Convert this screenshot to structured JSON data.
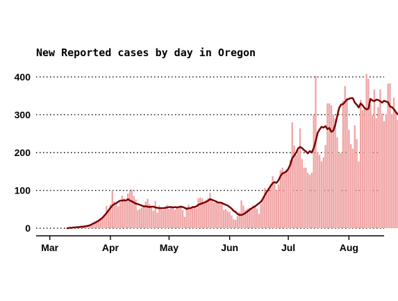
{
  "chart_data": {
    "type": "bar",
    "title": "New Reported cases by day in Oregon",
    "xlabel": "",
    "ylabel": "",
    "x_start": "2020-03-01",
    "x_range": [
      "2020-02-23",
      "2020-08-19"
    ],
    "ylim": [
      -20,
      420
    ],
    "yticks": [
      0,
      100,
      200,
      300,
      400
    ],
    "xticks": [
      {
        "date": "2020-03-01",
        "label": "Mar"
      },
      {
        "date": "2020-04-01",
        "label": "Apr"
      },
      {
        "date": "2020-05-01",
        "label": "May"
      },
      {
        "date": "2020-06-01",
        "label": "Jun"
      },
      {
        "date": "2020-07-01",
        "label": "Jul"
      },
      {
        "date": "2020-08-01",
        "label": "Aug"
      }
    ],
    "grid": {
      "y": true,
      "x": false,
      "style": "dotted"
    },
    "bar_color": "#f0a5a5",
    "line_color": "#7a0000",
    "series": [
      {
        "type": "bar",
        "values": [
          0,
          0,
          0,
          0,
          0,
          0,
          0,
          0,
          0,
          0,
          1,
          1,
          2,
          2,
          3,
          4,
          5,
          4,
          6,
          8,
          6,
          10,
          14,
          19,
          17,
          22,
          26,
          31,
          37,
          59,
          48,
          63,
          100,
          71,
          62,
          58,
          69,
          86,
          78,
          70,
          92,
          99,
          102,
          85,
          76,
          48,
          51,
          55,
          61,
          70,
          78,
          64,
          58,
          46,
          72,
          41,
          60,
          50,
          48,
          55,
          62,
          51,
          58,
          53,
          49,
          57,
          54,
          60,
          48,
          30,
          56,
          62,
          55,
          58,
          55,
          53,
          79,
          81,
          79,
          70,
          75,
          80,
          93,
          72,
          68,
          68,
          68,
          67,
          69,
          48,
          51,
          45,
          43,
          34,
          24,
          22,
          32,
          43,
          74,
          60,
          48,
          51,
          54,
          54,
          61,
          57,
          52,
          38,
          65,
          77,
          106,
          91,
          100,
          116,
          138,
          122,
          100,
          116,
          153,
          160,
          146,
          155,
          160,
          181,
          280,
          219,
          194,
          206,
          264,
          183,
          160,
          160,
          146,
          141,
          147,
          300,
          403,
          201,
          194,
          177,
          187,
          220,
          330,
          330,
          325,
          300,
          290,
          240,
          200,
          198,
          337,
          376,
          345,
          260,
          222,
          210,
          272,
          236,
          176,
          340,
          313,
          319,
          408,
          395,
          327,
          300,
          367,
          291,
          320,
          367,
          304,
          283,
          302,
          382,
          383,
          302,
          345,
          305,
          286,
          375,
          282,
          344,
          307,
          342,
          306,
          405,
          350,
          258,
          212
        ]
      },
      {
        "type": "line",
        "values": [
          0,
          0,
          0,
          0,
          0,
          0,
          0,
          0,
          0,
          0,
          1,
          1,
          2,
          2,
          3,
          3,
          4,
          4,
          5,
          6,
          7,
          9,
          12,
          14,
          17,
          20,
          24,
          28,
          34,
          40,
          47,
          54,
          60,
          64,
          66,
          70,
          73,
          73,
          74,
          73,
          77,
          73,
          71,
          68,
          65,
          64,
          62,
          60,
          58,
          58,
          57,
          56,
          57,
          57,
          55,
          54,
          53,
          53,
          53,
          54,
          55,
          56,
          56,
          55,
          56,
          55,
          56,
          57,
          56,
          54,
          51,
          53,
          53,
          56,
          56,
          58,
          62,
          64,
          66,
          68,
          70,
          73,
          77,
          75,
          73,
          71,
          68,
          68,
          67,
          64,
          62,
          60,
          56,
          52,
          46,
          43,
          38,
          35,
          35,
          37,
          40,
          44,
          48,
          52,
          55,
          58,
          62,
          66,
          70,
          78,
          88,
          96,
          104,
          112,
          119,
          122,
          120,
          127,
          138,
          145,
          147,
          150,
          157,
          168,
          185,
          192,
          200,
          211,
          215,
          212,
          207,
          203,
          198,
          204,
          200,
          212,
          230,
          252,
          261,
          268,
          266,
          270,
          262,
          265,
          255,
          258,
          273,
          296,
          318,
          327,
          328,
          334,
          340,
          342,
          344,
          344,
          332,
          327,
          319,
          330,
          325,
          318,
          314,
          316,
          342,
          338,
          336,
          340,
          339,
          336,
          332,
          337,
          335,
          333,
          322,
          320,
          315,
          307,
          301,
          305,
          311,
          314,
          309,
          305,
          300
        ]
      }
    ]
  }
}
